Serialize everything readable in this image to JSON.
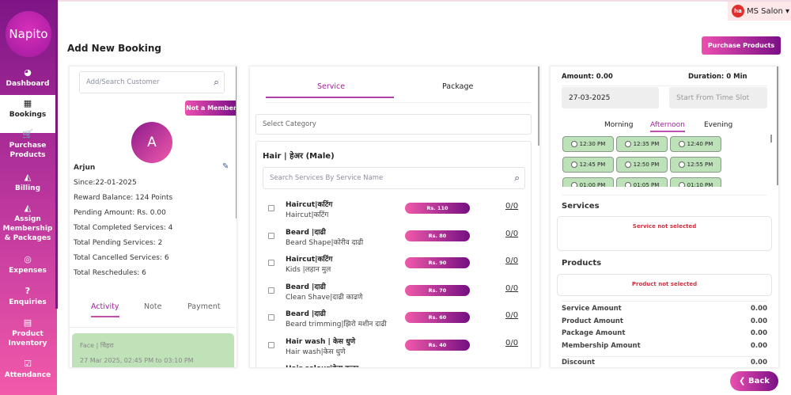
{
  "app": {
    "logo": "Napito",
    "page_title": "Add New Booking",
    "user": {
      "initials": "ha",
      "name": "MS Salon ▾"
    },
    "purchase_button": "Purchase Products",
    "back_button": "❮ Back"
  },
  "sidebar": {
    "items": [
      {
        "label": "Dashboard",
        "icon": "◕"
      },
      {
        "label": "Bookings",
        "icon": "▦"
      },
      {
        "label": "Purchase Products",
        "icon": "🛒"
      },
      {
        "label": "Billing",
        "icon": "◭"
      },
      {
        "label": "Assign Membership & Packages",
        "icon": "◭"
      },
      {
        "label": "Expenses",
        "icon": "◎"
      },
      {
        "label": "Enquiries",
        "icon": "?"
      },
      {
        "label": "Product Inventory",
        "icon": "▤"
      },
      {
        "label": "Attendance",
        "icon": "☑"
      }
    ]
  },
  "customer": {
    "search_placeholder": "Add/Search Customer",
    "member_badge": "Not a Member",
    "avatar": "A",
    "name": "Arjun",
    "details": [
      "Since:22-01-2025",
      "Reward Balance: 124 Points",
      "Pending Amount: Rs. 0.00",
      "Total Completed Services: 4",
      "Total Pending Services: 2",
      "Total Cancelled Services: 6",
      "Total Reschedules: 6"
    ],
    "tabs": [
      "Activity",
      "Note",
      "Payment"
    ],
    "activity": {
      "service": "Face | चिेहरा",
      "time": "27 Mar 2025, 02:45 PM to 03:10 PM"
    }
  },
  "services": {
    "tabs": [
      "Service",
      "Package"
    ],
    "category_placeholder": "Select Category",
    "category_title": "Hair | हेअर (Male)",
    "search_placeholder": "Search Services By Service Name",
    "items": [
      {
        "name": "Haircut|कटिंग",
        "sub": "Haircut|कटिंग",
        "price": "Rs. 110",
        "count": "0/0"
      },
      {
        "name": "Beard |दाढी",
        "sub": "Beard Shape|कोरीव दाढी",
        "price": "Rs. 80",
        "count": "0/0"
      },
      {
        "name": "Haircut|कटिंग",
        "sub": "Kids |लहान मुल",
        "price": "Rs. 90",
        "count": "0/0"
      },
      {
        "name": "Beard |दाढी",
        "sub": "Clean Shave|दाढी काढणे",
        "price": "Rs. 70",
        "count": "0/0"
      },
      {
        "name": "Beard |दाढी",
        "sub": "Beard trimming|झिरो मशीन दाढी",
        "price": "Rs. 60",
        "count": "0/0"
      },
      {
        "name": "Hair wash | केस धुणे",
        "sub": "Hair wash|केस धुणे",
        "price": "Rs. 40",
        "count": "0/0"
      },
      {
        "name": "Hair colour|केस कलर",
        "sub": "",
        "price": "",
        "count": ""
      }
    ]
  },
  "booking": {
    "amount": "Amount:  0.00",
    "duration": "Duration:  0 Min",
    "date": "27-03-2025",
    "time_placeholder": "Start From Time Slot",
    "periods": [
      "Morning",
      "Afternoon",
      "Evening"
    ],
    "slots": [
      "12:30 PM",
      "12:35 PM",
      "12:40 PM",
      "12:45 PM",
      "12:50 PM",
      "12:55 PM",
      "01:00 PM",
      "01:05 PM",
      "01:10 PM"
    ],
    "services_title": "Services",
    "service_empty": "Service not selected",
    "products_title": "Products",
    "product_empty": "Product not selected",
    "summary": [
      {
        "label": "Service Amount",
        "value": "0.00"
      },
      {
        "label": "Product Amount",
        "value": "0.00"
      },
      {
        "label": "Package Amount",
        "value": "0.00"
      },
      {
        "label": "Membership Amount",
        "value": "0.00"
      },
      {
        "label": "Discount",
        "value": "0.00"
      }
    ]
  },
  "colors": {
    "accent": "#a0229e",
    "slot": "#bde1b8",
    "error": "#d03040"
  }
}
